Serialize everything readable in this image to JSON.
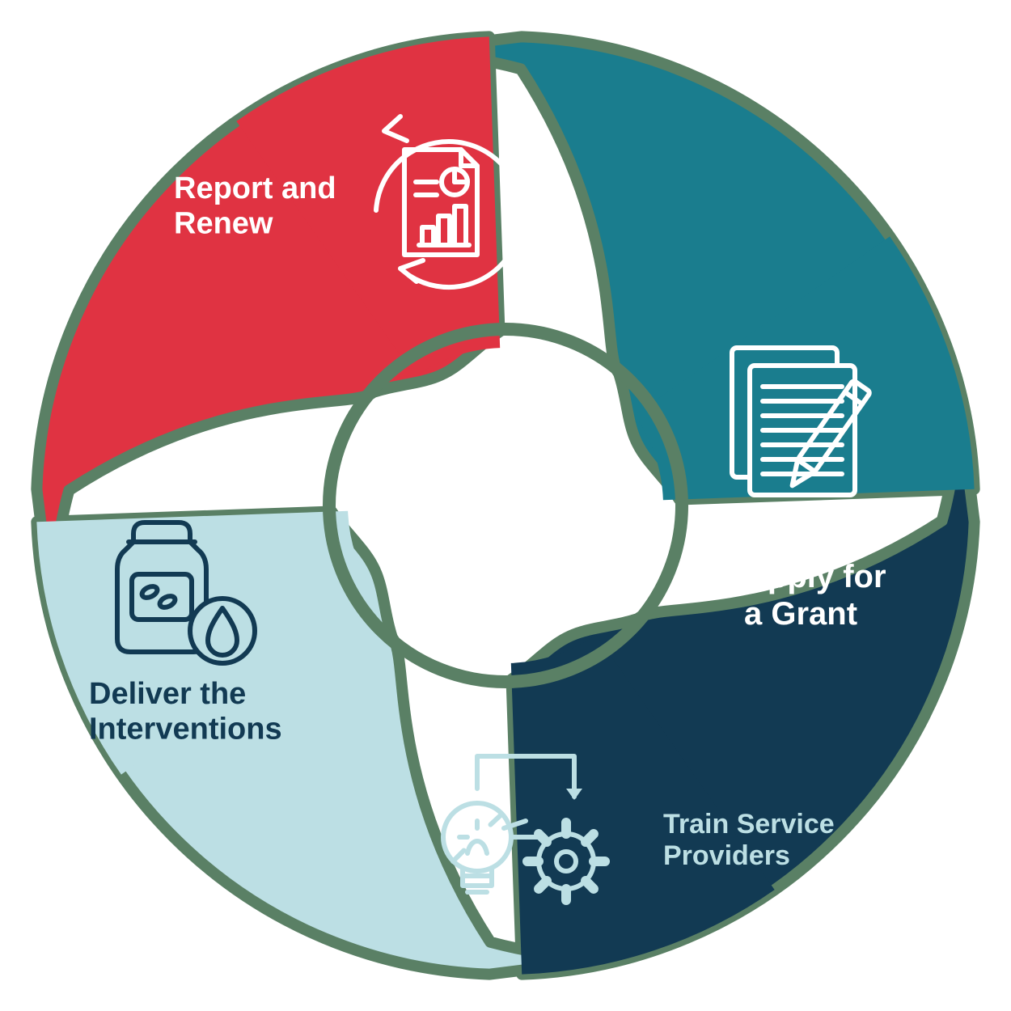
{
  "diagram": {
    "type": "cycle",
    "background": "transparent",
    "gap_color": "#5a8065",
    "inner_hole_radius": 215,
    "outer_radius": 580,
    "segments": [
      {
        "id": "plan",
        "label": "Plan and\nApply for\na Grant",
        "fill": "#1a7d8e",
        "text_color": "#ffffff",
        "icon_color": "#ffffff",
        "icon": "documents-pencil",
        "label_fontsize": 40,
        "angle_center_deg": 45
      },
      {
        "id": "train",
        "label": "Train Service\nProviders",
        "fill": "#123a53",
        "text_color": "#bcdfe4",
        "icon_color": "#bcdfe4",
        "icon": "lightbulb-gear",
        "label_fontsize": 34,
        "angle_center_deg": 135
      },
      {
        "id": "deliver",
        "label": "Deliver the\nInterventions",
        "fill": "#bcdfe4",
        "text_color": "#123a53",
        "icon_color": "#123a53",
        "icon": "vial-droplet",
        "label_fontsize": 38,
        "angle_center_deg": 225
      },
      {
        "id": "report",
        "label": "Report and\nRenew",
        "fill": "#e03342",
        "text_color": "#ffffff",
        "icon_color": "#ffffff",
        "icon": "report-cycle",
        "label_fontsize": 38,
        "angle_center_deg": 315
      }
    ]
  }
}
